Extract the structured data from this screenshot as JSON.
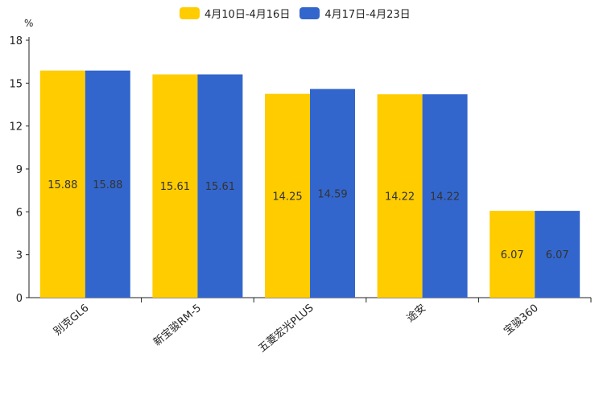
{
  "chart_data": {
    "type": "bar",
    "title": "",
    "unit_label": "%",
    "categories": [
      "别克GL6",
      "新宝骏RM-5",
      "五菱宏光PLUS",
      "途安",
      "宝骏360"
    ],
    "series": [
      {
        "name": "4月10日-4月16日",
        "color": "#FFCC00",
        "values": [
          15.88,
          15.61,
          14.25,
          14.22,
          6.07
        ]
      },
      {
        "name": "4月17日-4月23日",
        "color": "#3366CC",
        "values": [
          15.88,
          15.61,
          14.59,
          14.22,
          6.07
        ]
      }
    ],
    "ylim": [
      0,
      18
    ],
    "yticks": [
      0,
      3,
      6,
      9,
      12,
      15,
      18
    ],
    "xlabel": "",
    "ylabel": "%",
    "legend_position": "top-center"
  }
}
